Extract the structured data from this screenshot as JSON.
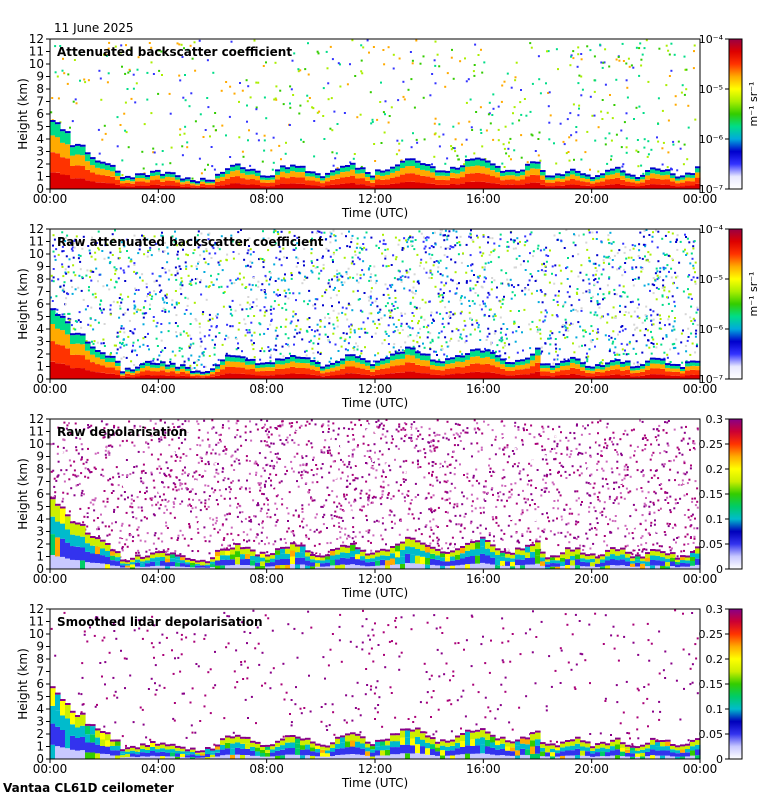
{
  "date": "11 June 2025",
  "caption": "Vantaa CL61D ceilometer",
  "chart_data": [
    {
      "type": "heatmap",
      "title": "Attenuated backscatter coefficient",
      "xlabel": "Time (UTC)",
      "ylabel": "Height (km)",
      "x_ticks": [
        "00:00",
        "04:00",
        "08:00",
        "12:00",
        "16:00",
        "20:00",
        "00:00"
      ],
      "y_ticks": [
        "0",
        "1",
        "2",
        "3",
        "4",
        "5",
        "6",
        "7",
        "8",
        "9",
        "10",
        "11",
        "12"
      ],
      "ylim": [
        0,
        12
      ],
      "colorbar": {
        "scale": "log",
        "range": [
          1e-07,
          0.0001
        ],
        "unit": "m⁻¹ sr⁻¹",
        "ticks": [
          "10⁻⁴",
          "10⁻⁵",
          "10⁻⁶",
          "10⁻⁷"
        ]
      }
    },
    {
      "type": "heatmap",
      "title": "Raw attenuated backscatter coefficient",
      "xlabel": "Time (UTC)",
      "ylabel": "Height (km)",
      "x_ticks": [
        "00:00",
        "04:00",
        "08:00",
        "12:00",
        "16:00",
        "20:00",
        "00:00"
      ],
      "y_ticks": [
        "0",
        "1",
        "2",
        "3",
        "4",
        "5",
        "6",
        "7",
        "8",
        "9",
        "10",
        "11",
        "12"
      ],
      "ylim": [
        0,
        12
      ],
      "colorbar": {
        "scale": "log",
        "range": [
          1e-07,
          0.0001
        ],
        "unit": "m⁻¹ sr⁻¹",
        "ticks": [
          "10⁻⁴",
          "10⁻⁵",
          "10⁻⁶",
          "10⁻⁷"
        ]
      }
    },
    {
      "type": "heatmap",
      "title": "Raw depolarisation",
      "xlabel": "Time (UTC)",
      "ylabel": "Height (km)",
      "x_ticks": [
        "00:00",
        "04:00",
        "08:00",
        "12:00",
        "16:00",
        "20:00",
        "00:00"
      ],
      "y_ticks": [
        "0",
        "1",
        "2",
        "3",
        "4",
        "5",
        "6",
        "7",
        "8",
        "9",
        "10",
        "11",
        "12"
      ],
      "ylim": [
        0,
        12
      ],
      "colorbar": {
        "scale": "linear",
        "range": [
          0,
          0.3
        ],
        "unit": "",
        "ticks": [
          "0.3",
          "0.25",
          "0.2",
          "0.15",
          "0.1",
          "0.05",
          "0"
        ]
      }
    },
    {
      "type": "heatmap",
      "title": "Smoothed lidar depolarisation",
      "xlabel": "Time (UTC)",
      "ylabel": "Height (km)",
      "x_ticks": [
        "00:00",
        "04:00",
        "08:00",
        "12:00",
        "16:00",
        "20:00",
        "00:00"
      ],
      "y_ticks": [
        "0",
        "1",
        "2",
        "3",
        "4",
        "5",
        "6",
        "7",
        "8",
        "9",
        "10",
        "11",
        "12"
      ],
      "ylim": [
        0,
        12
      ],
      "colorbar": {
        "scale": "linear",
        "range": [
          0,
          0.3
        ],
        "unit": "",
        "ticks": [
          "0.3",
          "0.25",
          "0.2",
          "0.15",
          "0.1",
          "0.05",
          "0"
        ]
      }
    }
  ]
}
